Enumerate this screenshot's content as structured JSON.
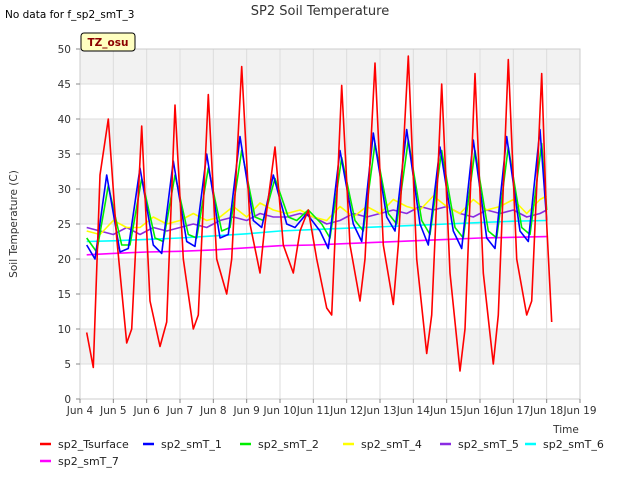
{
  "chart_data": {
    "type": "line",
    "title": "SP2 Soil Temperature",
    "note": "No data for f_sp2_smT_3",
    "badge": "TZ_osu",
    "xlabel": "Time",
    "ylabel": "Soil Temperature (C)",
    "xlim": [
      4.0,
      19.0
    ],
    "ylim": [
      0,
      50
    ],
    "x_ticks": [
      {
        "value": 4,
        "label": "Jun 4"
      },
      {
        "value": 5,
        "label": "Jun 5"
      },
      {
        "value": 6,
        "label": "Jun 6"
      },
      {
        "value": 7,
        "label": "Jun 7"
      },
      {
        "value": 8,
        "label": "Jun 8"
      },
      {
        "value": 9,
        "label": "Jun 9"
      },
      {
        "value": 10,
        "label": "Jun 10"
      },
      {
        "value": 11,
        "label": "Jun 11"
      },
      {
        "value": 12,
        "label": "Jun 12"
      },
      {
        "value": 13,
        "label": "Jun 13"
      },
      {
        "value": 14,
        "label": "Jun 14"
      },
      {
        "value": 15,
        "label": "Jun 15"
      },
      {
        "value": 16,
        "label": "Jun 16"
      },
      {
        "value": 17,
        "label": "Jun 17"
      },
      {
        "value": 18,
        "label": "Jun 18"
      },
      {
        "value": 19,
        "label": "Jun 19"
      }
    ],
    "y_ticks": [
      0,
      5,
      10,
      15,
      20,
      25,
      30,
      35,
      40,
      45,
      50
    ],
    "series": [
      {
        "name": "sp2_Tsurface",
        "color": "#ff0000",
        "x": [
          4.2,
          4.4,
          4.6,
          4.85,
          5.1,
          5.4,
          5.55,
          5.85,
          6.1,
          6.4,
          6.6,
          6.85,
          7.1,
          7.4,
          7.55,
          7.85,
          8.1,
          8.4,
          8.55,
          8.85,
          9.1,
          9.4,
          9.55,
          9.85,
          10.1,
          10.4,
          10.6,
          10.85,
          11.1,
          11.4,
          11.55,
          11.85,
          12.1,
          12.4,
          12.55,
          12.85,
          13.1,
          13.4,
          13.55,
          13.85,
          14.1,
          14.4,
          14.55,
          14.85,
          15.1,
          15.4,
          15.55,
          15.85,
          16.1,
          16.4,
          16.55,
          16.85,
          17.1,
          17.4,
          17.55,
          17.85,
          18.0,
          18.15
        ],
        "y": [
          9.5,
          4.5,
          32.0,
          40.0,
          23.0,
          8.0,
          10.0,
          39.0,
          14.0,
          7.5,
          11.0,
          42.0,
          20.0,
          10.0,
          12.0,
          43.5,
          20.0,
          15.0,
          20.0,
          47.5,
          25.0,
          18.0,
          25.0,
          36.0,
          22.0,
          18.0,
          24.0,
          27.0,
          20.0,
          13.0,
          12.0,
          44.8,
          22.0,
          14.0,
          20.0,
          48.0,
          22.0,
          13.5,
          22.0,
          49.0,
          20.0,
          6.5,
          12.0,
          45.0,
          18.0,
          4.0,
          10.0,
          46.5,
          18.0,
          5.0,
          12.0,
          48.5,
          20.0,
          12.0,
          14.0,
          46.5,
          25.0,
          11.0
        ]
      },
      {
        "name": "sp2_smT_1",
        "color": "#0000ff",
        "x": [
          4.2,
          4.45,
          4.8,
          5.2,
          5.45,
          5.8,
          6.2,
          6.45,
          6.8,
          7.2,
          7.45,
          7.8,
          8.2,
          8.45,
          8.8,
          9.2,
          9.45,
          9.8,
          10.2,
          10.45,
          10.8,
          11.2,
          11.45,
          11.8,
          12.2,
          12.45,
          12.8,
          13.2,
          13.45,
          13.8,
          14.2,
          14.45,
          14.8,
          15.2,
          15.45,
          15.8,
          16.2,
          16.45,
          16.8,
          17.2,
          17.45,
          17.8,
          18.0
        ],
        "y": [
          22.0,
          20.0,
          32.0,
          21.0,
          21.5,
          33.0,
          22.0,
          20.8,
          34.0,
          22.5,
          21.8,
          35.0,
          23.0,
          23.5,
          37.5,
          25.5,
          24.5,
          32.0,
          25.0,
          24.5,
          26.5,
          24.0,
          21.5,
          35.5,
          25.0,
          22.5,
          38.0,
          26.0,
          24.0,
          38.5,
          25.0,
          22.0,
          36.0,
          24.0,
          21.5,
          37.0,
          23.0,
          21.5,
          37.5,
          24.0,
          22.5,
          38.5,
          25.5
        ]
      },
      {
        "name": "sp2_smT_2",
        "color": "#00ee00",
        "x": [
          4.2,
          4.5,
          4.85,
          5.25,
          5.5,
          5.85,
          6.25,
          6.5,
          6.85,
          7.25,
          7.5,
          7.85,
          8.25,
          8.5,
          8.85,
          9.25,
          9.5,
          9.85,
          10.25,
          10.5,
          10.85,
          11.25,
          11.5,
          11.85,
          12.25,
          12.5,
          12.85,
          13.25,
          13.5,
          13.85,
          14.25,
          14.5,
          14.85,
          15.25,
          15.5,
          15.85,
          16.25,
          16.5,
          16.85,
          17.25,
          17.5,
          17.85,
          18.0
        ],
        "y": [
          23.0,
          21.0,
          30.5,
          22.0,
          22.0,
          31.5,
          23.0,
          22.5,
          32.0,
          23.5,
          23.0,
          33.0,
          24.0,
          24.5,
          35.5,
          26.0,
          25.5,
          31.5,
          26.0,
          25.5,
          27.0,
          25.0,
          23.0,
          34.5,
          25.5,
          24.0,
          36.5,
          26.5,
          25.0,
          37.0,
          25.5,
          23.5,
          35.5,
          24.5,
          23.0,
          35.5,
          24.0,
          23.0,
          36.0,
          24.5,
          23.5,
          36.5,
          27.0
        ]
      },
      {
        "name": "sp2_smT_4",
        "color": "#ffff00",
        "x": [
          4.2,
          4.6,
          5.0,
          5.4,
          5.8,
          6.2,
          6.6,
          7.0,
          7.4,
          7.8,
          8.2,
          8.6,
          9.0,
          9.4,
          9.8,
          10.2,
          10.6,
          11.0,
          11.4,
          11.8,
          12.2,
          12.6,
          13.0,
          13.4,
          13.8,
          14.2,
          14.6,
          15.0,
          15.4,
          15.8,
          16.2,
          16.6,
          17.0,
          17.4,
          17.8,
          18.0
        ],
        "y": [
          24.0,
          23.5,
          25.5,
          24.5,
          24.5,
          26.0,
          25.0,
          25.5,
          26.5,
          25.5,
          26.0,
          27.5,
          26.0,
          28.0,
          27.0,
          26.5,
          27.0,
          26.0,
          25.5,
          27.5,
          26.0,
          27.5,
          26.5,
          28.5,
          27.5,
          27.0,
          29.0,
          27.5,
          26.5,
          28.5,
          27.0,
          27.5,
          28.5,
          26.5,
          28.5,
          29.0
        ]
      },
      {
        "name": "sp2_smT_5",
        "color": "#8a2be2",
        "x": [
          4.2,
          4.6,
          5.0,
          5.4,
          5.8,
          6.2,
          6.6,
          7.0,
          7.4,
          7.8,
          8.2,
          8.6,
          9.0,
          9.4,
          9.8,
          10.2,
          10.6,
          11.0,
          11.4,
          11.8,
          12.2,
          12.6,
          13.0,
          13.4,
          13.8,
          14.2,
          14.6,
          15.0,
          15.4,
          15.8,
          16.2,
          16.6,
          17.0,
          17.4,
          17.8,
          18.0
        ],
        "y": [
          24.5,
          24.0,
          23.5,
          24.5,
          23.5,
          24.5,
          24.0,
          24.5,
          25.0,
          24.5,
          25.5,
          26.0,
          25.5,
          26.5,
          26.0,
          26.0,
          26.5,
          26.0,
          25.0,
          25.5,
          26.5,
          26.0,
          26.5,
          27.0,
          26.5,
          27.5,
          27.0,
          27.5,
          26.5,
          26.0,
          27.0,
          26.5,
          27.0,
          26.0,
          26.5,
          27.0
        ]
      },
      {
        "name": "sp2_smT_6",
        "color": "#00ffff",
        "x": [
          4.2,
          5.0,
          6.0,
          7.0,
          8.0,
          9.0,
          10.0,
          11.0,
          12.0,
          13.0,
          14.0,
          15.0,
          16.0,
          17.0,
          18.0
        ],
        "y": [
          22.5,
          22.6,
          22.8,
          23.0,
          23.3,
          23.6,
          24.0,
          24.2,
          24.4,
          24.6,
          24.8,
          25.0,
          25.2,
          25.4,
          25.5
        ]
      },
      {
        "name": "sp2_smT_7",
        "color": "#ff00ff",
        "x": [
          4.2,
          5.0,
          6.0,
          7.0,
          8.0,
          9.0,
          10.0,
          11.0,
          12.0,
          13.0,
          14.0,
          15.0,
          16.0,
          17.0,
          18.0
        ],
        "y": [
          20.6,
          20.8,
          21.0,
          21.1,
          21.3,
          21.6,
          21.9,
          22.0,
          22.2,
          22.4,
          22.6,
          22.8,
          23.0,
          23.1,
          23.2
        ]
      }
    ]
  }
}
